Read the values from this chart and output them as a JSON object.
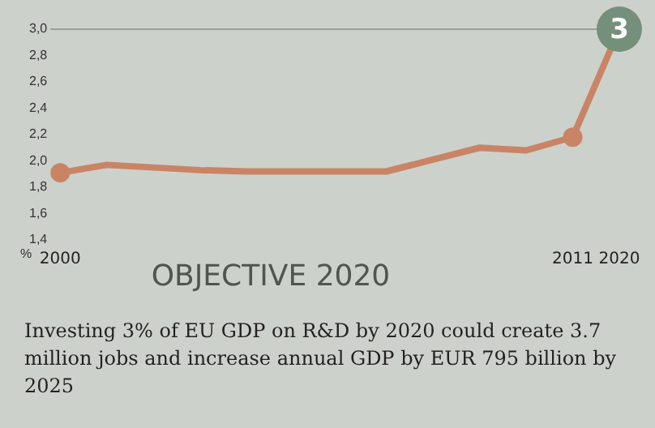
{
  "chart_data": {
    "type": "line",
    "title": "OBJECTIVE 2020",
    "categories": [
      "2000",
      null,
      null,
      null,
      null,
      null,
      null,
      null,
      null,
      null,
      null,
      "2011",
      "2020"
    ],
    "series": [
      {
        "color": "#c98466",
        "values": [
          1.91,
          1.97,
          1.95,
          1.93,
          1.92,
          1.92,
          1.92,
          1.92,
          2.01,
          2.1,
          2.08,
          2.18,
          3.0
        ]
      }
    ],
    "value_labels": [
      null,
      null,
      null,
      null,
      null,
      null,
      null,
      null,
      null,
      null,
      null,
      null,
      "3"
    ],
    "ylabel": "%",
    "ylim": [
      1.4,
      3.0
    ],
    "yticks": [
      {
        "value": 1.4,
        "label": "1,4"
      },
      {
        "value": 1.6,
        "label": "1,6"
      },
      {
        "value": 1.8,
        "label": "1,8"
      },
      {
        "value": 2.0,
        "label": "2,0"
      },
      {
        "value": 2.2,
        "label": "2,2"
      },
      {
        "value": 2.4,
        "label": "2,4"
      },
      {
        "value": 2.6,
        "label": "2,6"
      },
      {
        "value": 2.8,
        "label": "2,8"
      },
      {
        "value": 3.0,
        "label": "3,0"
      }
    ],
    "ref_lines": [
      {
        "axis": "y",
        "value": 3.0,
        "color": "#9a9e98"
      }
    ],
    "annotations": [
      "Investing 3% of EU GDP on R&D by 2020 could create 3.7 million jobs and increase annual GDP by EUR 795 billion by 2025"
    ],
    "grid": false,
    "legend": false
  }
}
